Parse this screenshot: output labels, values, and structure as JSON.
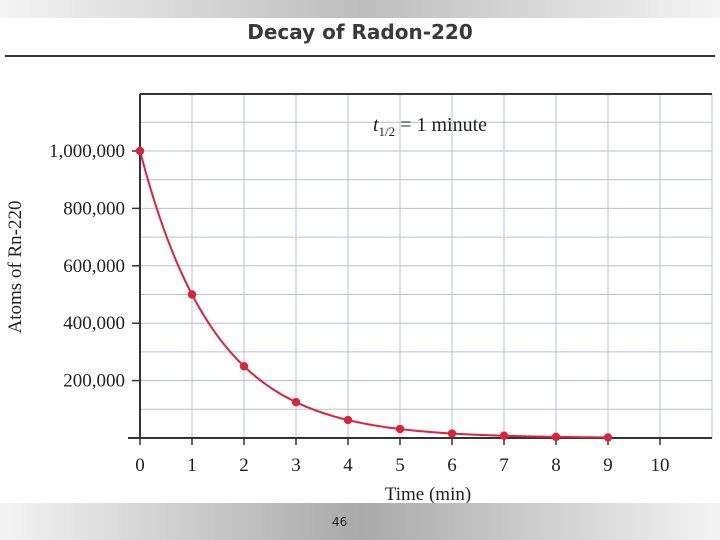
{
  "header": {
    "title": "Decay of Radon-220"
  },
  "footer": {
    "page_number": "46"
  },
  "colors": {
    "curve": "#d9243c",
    "grid": "#b9c0d8",
    "axis": "#333333"
  },
  "chart_data": {
    "type": "line",
    "title": "Decay of Radon-220",
    "annotation": "t₁/₂ = 1 minute",
    "xlabel": "Time (min)",
    "ylabel": "Atoms of Rn-220",
    "xlim": [
      0,
      11
    ],
    "ylim": [
      0,
      1000000
    ],
    "x_ticks": [
      0,
      1,
      2,
      3,
      4,
      5,
      6,
      7,
      8,
      9,
      10
    ],
    "y_ticks": [
      {
        "value": 200000,
        "label": "200,000"
      },
      {
        "value": 400000,
        "label": "400,000"
      },
      {
        "value": 600000,
        "label": "600,000"
      },
      {
        "value": 800000,
        "label": "800,000"
      },
      {
        "value": 1000000,
        "label": "1,000,000"
      }
    ],
    "grid": true,
    "series": [
      {
        "x": [
          0,
          1,
          2,
          3,
          4,
          5,
          6,
          7,
          8,
          9
        ],
        "y": [
          1000000,
          500000,
          250000,
          125000,
          62500,
          31250,
          15625,
          7813,
          3906,
          1953
        ]
      }
    ]
  }
}
